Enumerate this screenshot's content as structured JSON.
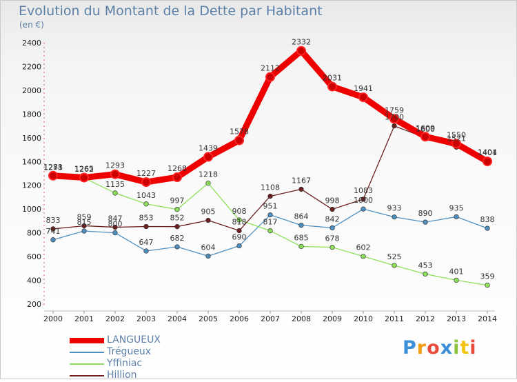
{
  "header": {
    "title": "Evolution du Montant de la Dette par Habitant",
    "subtitle": "(en €)"
  },
  "logo": {
    "text": "Proxiti",
    "colors": [
      "#3b8fd9",
      "#f39c12",
      "#e74c3c",
      "#3b8fd9",
      "#8cc63f",
      "#f1c40f",
      "#e74c3c"
    ]
  },
  "chart_data": {
    "type": "line",
    "title": "Evolution du Montant de la Dette par Habitant",
    "subtitle": "(en €)",
    "xlabel": "",
    "ylabel": "",
    "x": [
      "2000",
      "2001",
      "2002",
      "2003",
      "2004",
      "2005",
      "2006",
      "2007",
      "2008",
      "2009",
      "2010",
      "2011",
      "2012",
      "2013",
      "2014"
    ],
    "ylim": [
      200,
      2400
    ],
    "yticks": [
      200,
      400,
      600,
      800,
      1000,
      1200,
      1400,
      1600,
      1800,
      2000,
      2200,
      2400
    ],
    "grid": false,
    "legend_position": "bottom-left",
    "series": [
      {
        "name": "LANGUEUX",
        "color": "#ee0000",
        "values": [
          1281,
          1265,
          1293,
          1227,
          1268,
          1439,
          1578,
          2112,
          2332,
          2031,
          1941,
          1759,
          1609,
          1550,
          1401
        ]
      },
      {
        "name": "Trégueux",
        "color": "#4f8fc0",
        "values": [
          741,
          815,
          800,
          647,
          682,
          604,
          690,
          951,
          864,
          842,
          1000,
          933,
          890,
          935,
          838
        ]
      },
      {
        "name": "Yffiniac",
        "color": "#8ee05a",
        "values": [
          1278,
          1262,
          1135,
          1043,
          997,
          1218,
          908,
          817,
          685,
          678,
          602,
          525,
          453,
          401,
          359
        ]
      },
      {
        "name": "Hillion",
        "color": "#6b1f1f",
        "values": [
          833,
          859,
          847,
          853,
          852,
          905,
          818,
          1108,
          1167,
          998,
          1083,
          1700,
          1600,
          1521,
          1404
        ]
      }
    ]
  }
}
